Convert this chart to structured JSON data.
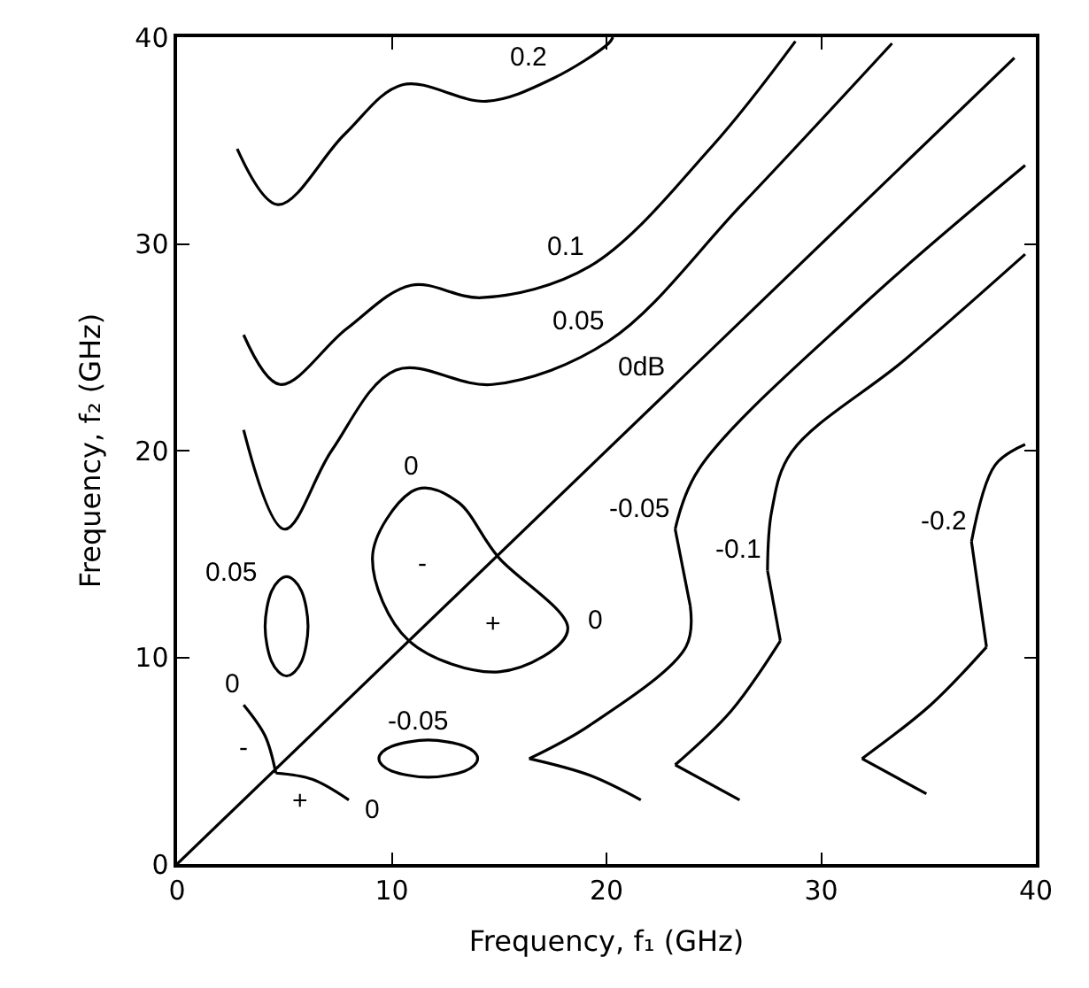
{
  "chart_data": {
    "type": "line",
    "xlabel": "Frequency, f₁ (GHz)",
    "ylabel": "Frequency, f₂ (GHz)",
    "xlim": [
      0,
      40
    ],
    "ylim": [
      0,
      40
    ],
    "xticks": [
      0,
      10,
      20,
      30,
      40
    ],
    "yticks": [
      0,
      10,
      20,
      30,
      40
    ],
    "line_style": "solid",
    "series": [
      {
        "color": "#000000",
        "x": [
          2.8,
          4.7,
          7.8,
          10.5,
          14.4,
          17.5,
          20.1,
          20.3
        ],
        "values": [
          34.6,
          31.9,
          35.3,
          37.7,
          36.9,
          38.0,
          39.7,
          40.0
        ]
      },
      {
        "color": "#000000",
        "x": [
          3.1,
          4.8,
          7.9,
          10.9,
          14.2,
          19.2,
          24.9,
          28.8
        ],
        "values": [
          25.6,
          23.2,
          25.9,
          28.0,
          27.4,
          28.9,
          34.7,
          39.8
        ]
      },
      {
        "color": "#000000",
        "x": [
          3.1,
          5.0,
          7.2,
          10.2,
          14.7,
          20.1,
          26.3,
          33.3
        ],
        "values": [
          21.0,
          16.2,
          20.0,
          23.9,
          23.2,
          25.3,
          31.9,
          39.7
        ]
      },
      {
        "color": "#000000",
        "x": [
          0,
          39
        ],
        "values": [
          0,
          39
        ]
      },
      {
        "color": "#000000",
        "x": [
          39.5,
          31.9,
          24.3,
          23.2
        ],
        "values": [
          33.8,
          27.0,
          19.1,
          16.2
        ]
      },
      {
        "color": "#000000",
        "x": [
          23.2,
          23.9
        ],
        "values": [
          16.2,
          12.5
        ]
      },
      {
        "color": "#000000",
        "x": [
          23.9,
          23.7,
          19.2,
          16.4
        ],
        "values": [
          12.5,
          10.5,
          6.7,
          5.1
        ]
      },
      {
        "color": "#000000",
        "x": [
          16.4,
          19.2,
          21.6
        ],
        "values": [
          5.1,
          4.3,
          3.1
        ]
      },
      {
        "color": "#000000",
        "x": [
          39.5,
          33.9,
          28.6,
          27.7,
          27.5
        ],
        "values": [
          29.5,
          24.4,
          19.9,
          17.1,
          14.2
        ]
      },
      {
        "color": "#000000",
        "x": [
          27.5,
          28.1
        ],
        "values": [
          14.2,
          10.8
        ]
      },
      {
        "color": "#000000",
        "x": [
          28.1,
          25.8,
          23.2
        ],
        "values": [
          10.8,
          7.4,
          4.8
        ]
      },
      {
        "color": "#000000",
        "x": [
          23.2,
          26.2
        ],
        "values": [
          4.8,
          3.1
        ]
      },
      {
        "color": "#000000",
        "x": [
          39.5,
          38.1,
          37.0
        ],
        "values": [
          20.3,
          19.3,
          15.6
        ]
      },
      {
        "color": "#000000",
        "x": [
          37.0,
          37.7
        ],
        "values": [
          15.6,
          10.5
        ]
      },
      {
        "color": "#000000",
        "x": [
          37.7,
          35.1,
          31.9
        ],
        "values": [
          10.5,
          7.7,
          5.1
        ]
      },
      {
        "color": "#000000",
        "x": [
          31.9,
          34.9
        ],
        "values": [
          5.1,
          3.4
        ]
      },
      {
        "color": "#000000",
        "x": [
          3.1,
          4.1,
          4.6
        ],
        "values": [
          7.7,
          6.2,
          4.4
        ]
      },
      {
        "color": "#000000",
        "x": [
          4.6,
          6.3,
          8.0
        ],
        "values": [
          4.4,
          4.1,
          3.1
        ]
      }
    ],
    "annotations": [
      {
        "text": "0.2",
        "x": 17.5,
        "y": 38.0
      },
      {
        "text": "0.1",
        "x": 19.2,
        "y": 28.9
      },
      {
        "text": "0.05",
        "x": 20.1,
        "y": 25.3
      },
      {
        "text": "0dB",
        "x": 23,
        "y": 23
      },
      "0",
      "0.05",
      {
        "text": "-0.05",
        "x": 23.2,
        "y": 16.2
      },
      "0",
      {
        "text": "-0.1",
        "x": 27.5,
        "y": 14.2
      },
      {
        "text": "-0.2",
        "x": 37.0,
        "y": 15.6
      },
      "-0.05",
      {
        "text": "0",
        "x": 3.1,
        "y": 7.7
      },
      "-",
      "+",
      "0",
      "-",
      "+"
    ]
  }
}
